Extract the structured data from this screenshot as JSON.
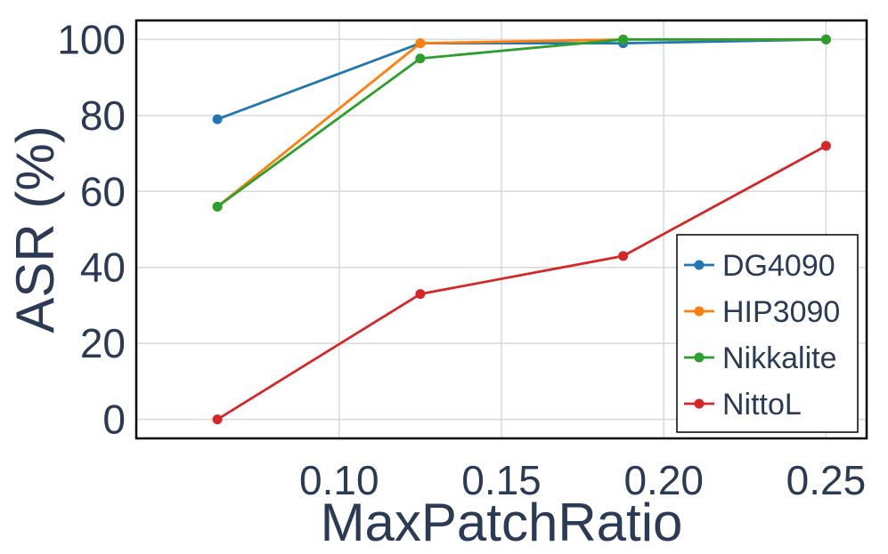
{
  "chart_data": {
    "type": "line",
    "title": "",
    "xlabel": "MaxPatchRatio",
    "ylabel": "ASR (%)",
    "x": [
      0.0625,
      0.125,
      0.1875,
      0.25
    ],
    "xlim": [
      0.0375,
      0.2625
    ],
    "ylim": [
      -5,
      105
    ],
    "xticks": [
      0.1,
      0.15,
      0.2,
      0.25
    ],
    "xtick_labels": [
      "0.10",
      "0.15",
      "0.20",
      "0.25"
    ],
    "yticks": [
      0,
      20,
      40,
      60,
      80,
      100
    ],
    "ytick_labels": [
      "0",
      "20",
      "40",
      "60",
      "80",
      "100"
    ],
    "grid": true,
    "legend_position": "bottom-right",
    "series": [
      {
        "name": "DG4090",
        "color": "#1f77b4",
        "values": [
          79,
          99,
          99,
          100
        ]
      },
      {
        "name": "HIP3090",
        "color": "#ff7f0e",
        "values": [
          56,
          99,
          100,
          100
        ]
      },
      {
        "name": "Nikkalite",
        "color": "#2ca02c",
        "values": [
          56,
          95,
          100,
          100
        ]
      },
      {
        "name": "NittoL",
        "color": "#d62728",
        "values": [
          0,
          33,
          43,
          72
        ]
      }
    ]
  }
}
